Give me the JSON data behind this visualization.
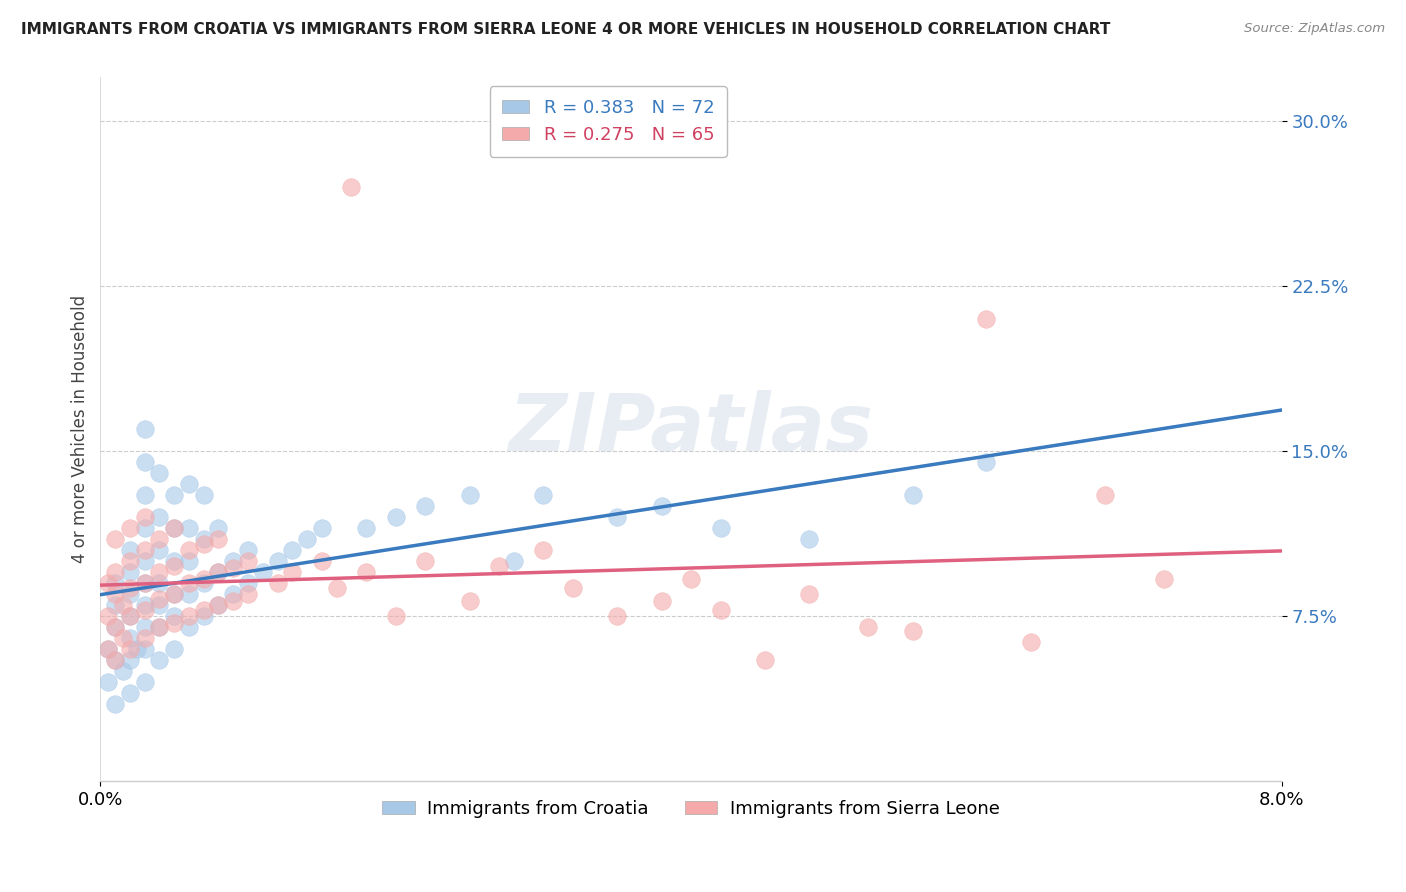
{
  "title": "IMMIGRANTS FROM CROATIA VS IMMIGRANTS FROM SIERRA LEONE 4 OR MORE VEHICLES IN HOUSEHOLD CORRELATION CHART",
  "source": "Source: ZipAtlas.com",
  "ylabel": "4 or more Vehicles in Household",
  "yticks": [
    "7.5%",
    "15.0%",
    "22.5%",
    "30.0%"
  ],
  "ytick_vals": [
    0.075,
    0.15,
    0.225,
    0.3
  ],
  "xlim": [
    0.0,
    0.08
  ],
  "ylim": [
    0.0,
    0.32
  ],
  "croatia_R": 0.383,
  "croatia_N": 72,
  "sierraleone_R": 0.275,
  "sierraleone_N": 65,
  "croatia_color": "#a8c8e8",
  "sierraleone_color": "#f4aaaa",
  "croatia_line_color": "#3a7abf",
  "croatia_dash_color": "#8ab4d8",
  "sierraleone_line_color": "#e06080",
  "croatia_scatter": [
    [
      0.0005,
      0.045
    ],
    [
      0.0005,
      0.06
    ],
    [
      0.001,
      0.035
    ],
    [
      0.001,
      0.055
    ],
    [
      0.001,
      0.07
    ],
    [
      0.001,
      0.08
    ],
    [
      0.001,
      0.09
    ],
    [
      0.0015,
      0.05
    ],
    [
      0.002,
      0.04
    ],
    [
      0.002,
      0.055
    ],
    [
      0.002,
      0.065
    ],
    [
      0.002,
      0.075
    ],
    [
      0.002,
      0.085
    ],
    [
      0.002,
      0.095
    ],
    [
      0.002,
      0.105
    ],
    [
      0.0025,
      0.06
    ],
    [
      0.003,
      0.045
    ],
    [
      0.003,
      0.06
    ],
    [
      0.003,
      0.07
    ],
    [
      0.003,
      0.08
    ],
    [
      0.003,
      0.09
    ],
    [
      0.003,
      0.1
    ],
    [
      0.003,
      0.115
    ],
    [
      0.003,
      0.13
    ],
    [
      0.003,
      0.145
    ],
    [
      0.003,
      0.16
    ],
    [
      0.004,
      0.055
    ],
    [
      0.004,
      0.07
    ],
    [
      0.004,
      0.08
    ],
    [
      0.004,
      0.09
    ],
    [
      0.004,
      0.105
    ],
    [
      0.004,
      0.12
    ],
    [
      0.004,
      0.14
    ],
    [
      0.005,
      0.06
    ],
    [
      0.005,
      0.075
    ],
    [
      0.005,
      0.085
    ],
    [
      0.005,
      0.1
    ],
    [
      0.005,
      0.115
    ],
    [
      0.005,
      0.13
    ],
    [
      0.006,
      0.07
    ],
    [
      0.006,
      0.085
    ],
    [
      0.006,
      0.1
    ],
    [
      0.006,
      0.115
    ],
    [
      0.006,
      0.135
    ],
    [
      0.007,
      0.075
    ],
    [
      0.007,
      0.09
    ],
    [
      0.007,
      0.11
    ],
    [
      0.007,
      0.13
    ],
    [
      0.008,
      0.08
    ],
    [
      0.008,
      0.095
    ],
    [
      0.008,
      0.115
    ],
    [
      0.009,
      0.085
    ],
    [
      0.009,
      0.1
    ],
    [
      0.01,
      0.09
    ],
    [
      0.01,
      0.105
    ],
    [
      0.011,
      0.095
    ],
    [
      0.012,
      0.1
    ],
    [
      0.013,
      0.105
    ],
    [
      0.014,
      0.11
    ],
    [
      0.015,
      0.115
    ],
    [
      0.018,
      0.115
    ],
    [
      0.02,
      0.12
    ],
    [
      0.022,
      0.125
    ],
    [
      0.025,
      0.13
    ],
    [
      0.028,
      0.1
    ],
    [
      0.03,
      0.13
    ],
    [
      0.035,
      0.12
    ],
    [
      0.038,
      0.125
    ],
    [
      0.042,
      0.115
    ],
    [
      0.048,
      0.11
    ],
    [
      0.055,
      0.13
    ],
    [
      0.06,
      0.145
    ]
  ],
  "sierraleone_scatter": [
    [
      0.0005,
      0.06
    ],
    [
      0.0005,
      0.075
    ],
    [
      0.0005,
      0.09
    ],
    [
      0.001,
      0.055
    ],
    [
      0.001,
      0.07
    ],
    [
      0.001,
      0.085
    ],
    [
      0.001,
      0.095
    ],
    [
      0.001,
      0.11
    ],
    [
      0.0015,
      0.065
    ],
    [
      0.0015,
      0.08
    ],
    [
      0.002,
      0.06
    ],
    [
      0.002,
      0.075
    ],
    [
      0.002,
      0.088
    ],
    [
      0.002,
      0.1
    ],
    [
      0.002,
      0.115
    ],
    [
      0.003,
      0.065
    ],
    [
      0.003,
      0.078
    ],
    [
      0.003,
      0.09
    ],
    [
      0.003,
      0.105
    ],
    [
      0.003,
      0.12
    ],
    [
      0.004,
      0.07
    ],
    [
      0.004,
      0.083
    ],
    [
      0.004,
      0.095
    ],
    [
      0.004,
      0.11
    ],
    [
      0.005,
      0.072
    ],
    [
      0.005,
      0.085
    ],
    [
      0.005,
      0.098
    ],
    [
      0.005,
      0.115
    ],
    [
      0.006,
      0.075
    ],
    [
      0.006,
      0.09
    ],
    [
      0.006,
      0.105
    ],
    [
      0.007,
      0.078
    ],
    [
      0.007,
      0.092
    ],
    [
      0.007,
      0.108
    ],
    [
      0.008,
      0.08
    ],
    [
      0.008,
      0.095
    ],
    [
      0.008,
      0.11
    ],
    [
      0.009,
      0.082
    ],
    [
      0.009,
      0.097
    ],
    [
      0.01,
      0.085
    ],
    [
      0.01,
      0.1
    ],
    [
      0.012,
      0.09
    ],
    [
      0.013,
      0.095
    ],
    [
      0.015,
      0.1
    ],
    [
      0.016,
      0.088
    ],
    [
      0.017,
      0.27
    ],
    [
      0.018,
      0.095
    ],
    [
      0.02,
      0.075
    ],
    [
      0.022,
      0.1
    ],
    [
      0.025,
      0.082
    ],
    [
      0.027,
      0.098
    ],
    [
      0.03,
      0.105
    ],
    [
      0.032,
      0.088
    ],
    [
      0.035,
      0.075
    ],
    [
      0.038,
      0.082
    ],
    [
      0.04,
      0.092
    ],
    [
      0.042,
      0.078
    ],
    [
      0.045,
      0.055
    ],
    [
      0.048,
      0.085
    ],
    [
      0.052,
      0.07
    ],
    [
      0.055,
      0.068
    ],
    [
      0.06,
      0.21
    ],
    [
      0.063,
      0.063
    ],
    [
      0.068,
      0.13
    ],
    [
      0.072,
      0.092
    ]
  ],
  "croatia_reg": [
    0.048,
    0.152
  ],
  "sierraleone_reg": [
    0.068,
    0.138
  ]
}
